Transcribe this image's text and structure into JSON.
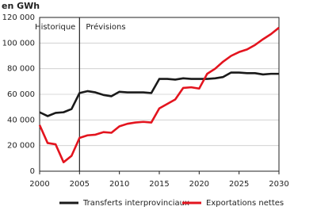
{
  "chart_data": {
    "type": "line",
    "y_label": "en GWh",
    "x": [
      2000,
      2001,
      2002,
      2003,
      2004,
      2005,
      2006,
      2007,
      2008,
      2009,
      2010,
      2011,
      2012,
      2013,
      2014,
      2015,
      2016,
      2017,
      2018,
      2019,
      2020,
      2021,
      2022,
      2023,
      2024,
      2025,
      2026,
      2027,
      2028,
      2029,
      2030
    ],
    "series": [
      {
        "name": "Transferts interprovinciaux",
        "color": "#1a1a1a",
        "values": [
          46000,
          43000,
          45500,
          46000,
          48500,
          61000,
          62500,
          61500,
          59500,
          58500,
          62000,
          61500,
          61500,
          61500,
          61000,
          72000,
          72000,
          71500,
          72500,
          72000,
          72000,
          72000,
          72500,
          73500,
          77000,
          77000,
          76500,
          76500,
          75500,
          76000,
          76000
        ]
      },
      {
        "name": "Exportations nettes",
        "color": "#e3141e",
        "values": [
          36000,
          22000,
          21000,
          7000,
          12000,
          26000,
          28000,
          28500,
          30500,
          30000,
          35000,
          37000,
          38000,
          38500,
          38000,
          49000,
          52500,
          56000,
          65000,
          65500,
          64500,
          76000,
          80000,
          85500,
          90000,
          93000,
          95000,
          98500,
          103000,
          107000,
          112000
        ]
      }
    ],
    "xlim": [
      2000,
      2030
    ],
    "xticks": [
      2000,
      2005,
      2010,
      2015,
      2020,
      2025,
      2030
    ],
    "ylim": [
      0,
      120000
    ],
    "yticks": [
      0,
      {
        "value": 20000,
        "label": "20 000"
      },
      {
        "value": 40000,
        "label": "40 000"
      },
      {
        "value": 60000,
        "label": "60 000"
      },
      {
        "value": 80000,
        "label": "80 000"
      },
      {
        "value": 100000,
        "label": "100 000"
      },
      {
        "value": 120000,
        "label": "120 000"
      }
    ],
    "grid": true,
    "divider": 2005,
    "annotations": [
      "Historique",
      "Prévisions"
    ],
    "legend": "bottom"
  }
}
